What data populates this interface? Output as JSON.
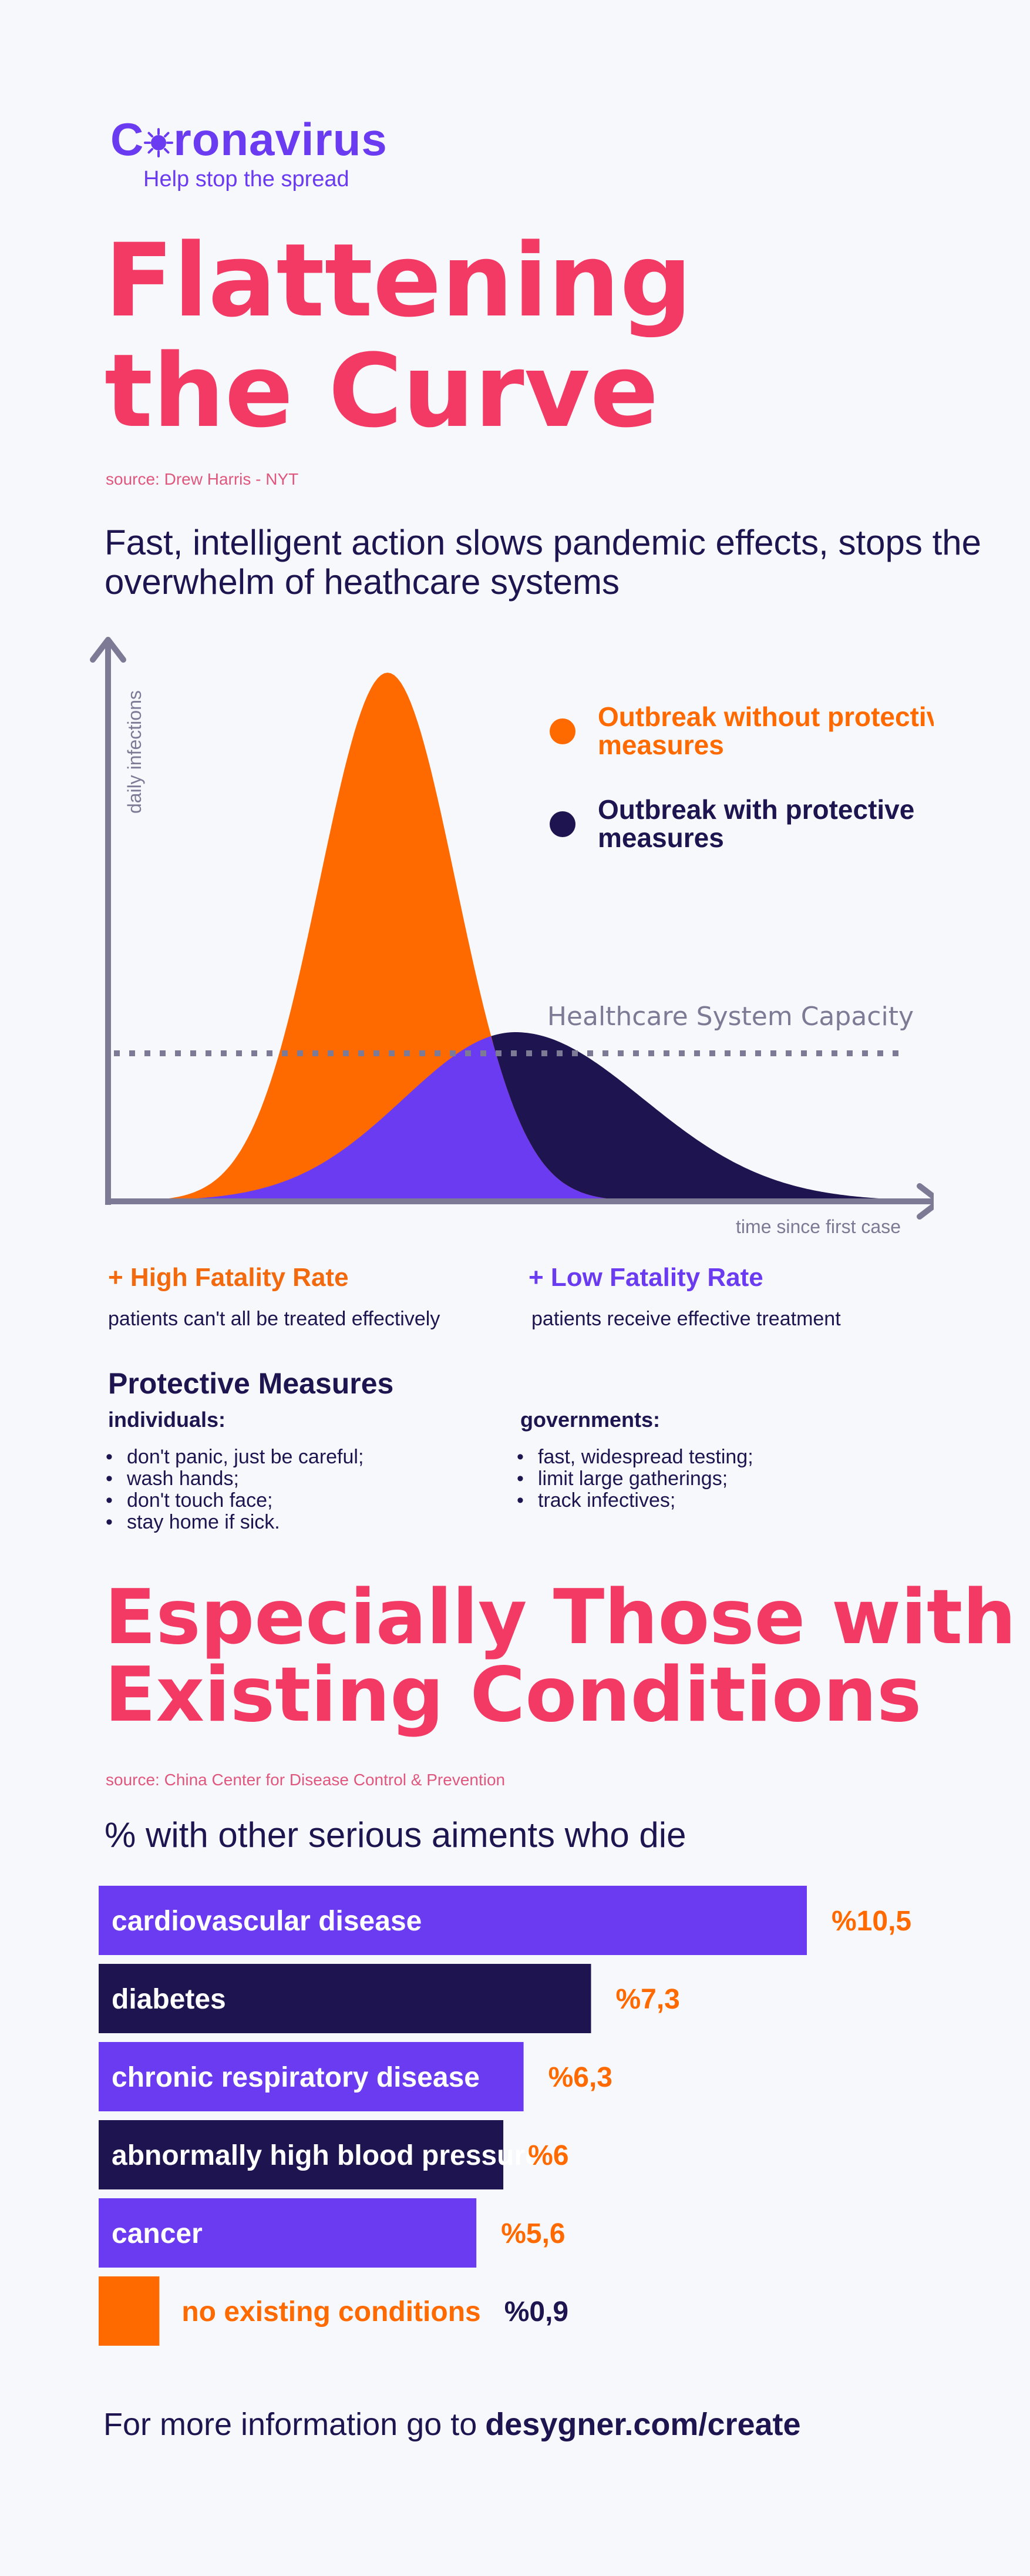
{
  "logo": {
    "title_before": "C",
    "title_after": "ronavirus",
    "subtitle": "Help stop the spread"
  },
  "section1": {
    "title_line1": "Flattening",
    "title_line2": "the Curve",
    "source": "source: Drew Harris - NYT",
    "subtitle": "Fast, intelligent action slows pandemic effects, stops the overwhelm of heathcare systems"
  },
  "fatality": {
    "high_title": "+ High Fatality Rate",
    "high_text": "patients can't all be treated effectively",
    "low_title": "+ Low Fatality Rate",
    "low_text": "patients receive effective treatment"
  },
  "protective": {
    "title": "Protective Measures",
    "individuals_heading": "individuals:",
    "individuals": [
      "don't panic, just be careful;",
      "wash hands;",
      "don't touch face;",
      "stay home if sick."
    ],
    "governments_heading": "governments:",
    "governments": [
      "fast, widespread testing;",
      "limit large gatherings;",
      "track infectives;"
    ]
  },
  "section2": {
    "title_line1": "Especially Those with",
    "title_line2": "Existing Conditions",
    "source": "source: China Center for Disease Control & Prevention",
    "subtitle": "% with other serious aiments who die"
  },
  "footer": {
    "text": "For more information go to",
    "link": "desygner.com/create"
  },
  "colors": {
    "pink": "#f23a64",
    "orange": "#ff6a00",
    "purple": "#6a3bf0",
    "navy": "#1e1550",
    "axis": "#7d7a96"
  },
  "chart_data": [
    {
      "type": "area",
      "ylabel": "daily infections",
      "xlabel": "time since first case",
      "capacity_label": "Healthcare System Capacity",
      "legend_position": "top-right",
      "series": [
        {
          "name": "Outbreak without protective measures",
          "color": "#ff6a00",
          "peak_time": 0.35,
          "peak_value": 1.0
        },
        {
          "name": "Outbreak with protective measures",
          "color": "#1e1550",
          "peak_time": 0.51,
          "peak_value": 0.32
        }
      ],
      "capacity": 0.28
    },
    {
      "type": "bar",
      "orientation": "horizontal",
      "title": "% with other serious aiments who die",
      "categories": [
        "cardiovascular disease",
        "diabetes",
        "chronic respiratory disease",
        "abnormally high blood pressure",
        "cancer",
        "no existing conditions"
      ],
      "values": [
        10.5,
        7.3,
        6.3,
        6,
        5.6,
        0.9
      ],
      "value_labels": [
        "%10,5",
        "%7,3",
        "%6,3",
        "%6",
        "%5,6",
        "%0,9"
      ],
      "xlim": [
        0,
        10.5
      ]
    }
  ]
}
